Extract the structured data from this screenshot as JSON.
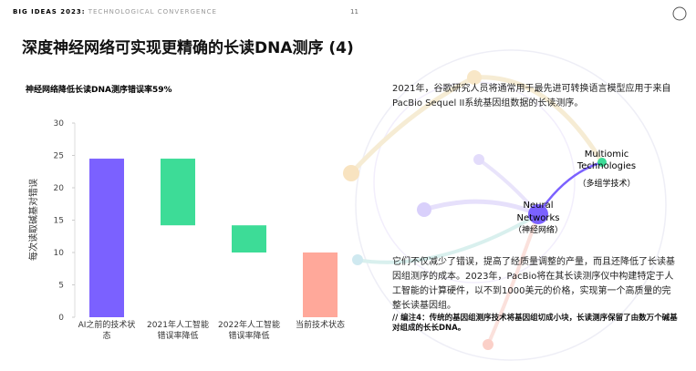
{
  "header": {
    "brand": "BIG IDEAS 2023:",
    "theme": "TECHNOLOGICAL CONVERGENCE",
    "page": "11"
  },
  "title": "深度神经网络可实现更精确的长读DNA测序 (4)",
  "paragraph_1": "2021年，谷歌研究人员将通常用于最先进可转换语言模型应用于来自PacBio Sequel II系统基因组数据的长读测序。",
  "paragraph_2": "它们不仅减少了错误，提高了经质量调整的产量，而且还降低了长读基因组测序的成本。2023年，PacBio将在其长读测序仪中构建特定于人工智能的计算硬件，以不到1000美元的价格，实现第一个高质量的完整长读基因组。",
  "footnote": "// 编注4：传统的基因组测序技术将基因组切成小块，长读测序保留了由数万个碱基对组成的长长DNA。",
  "network": {
    "node_1": "Multiomic Technologies",
    "node_1_cn": "（多组学技术）",
    "node_2": "Neural Networks",
    "node_2_cn": "（神经网络）"
  },
  "chart_data": {
    "type": "waterfall",
    "title": "神经网络降低长读DNA测序错误率59%",
    "y_label": "每次读取碱基对错误",
    "categories": [
      "AI之前的技术状态",
      "2021年人工智能错误率降低",
      "2022年人工智能错误率降低",
      "当前技术状态"
    ],
    "values": [
      24.5,
      -10.3,
      -4.2,
      10
    ],
    "measure": [
      "absolute",
      "relative",
      "relative",
      "absolute"
    ],
    "colors": [
      "#7b61ff",
      "#3ddc97",
      "#3ddc97",
      "#ffa89a"
    ],
    "ylim": [
      0,
      30
    ],
    "yticks": [
      0,
      5,
      10,
      15,
      20,
      25,
      30
    ]
  }
}
